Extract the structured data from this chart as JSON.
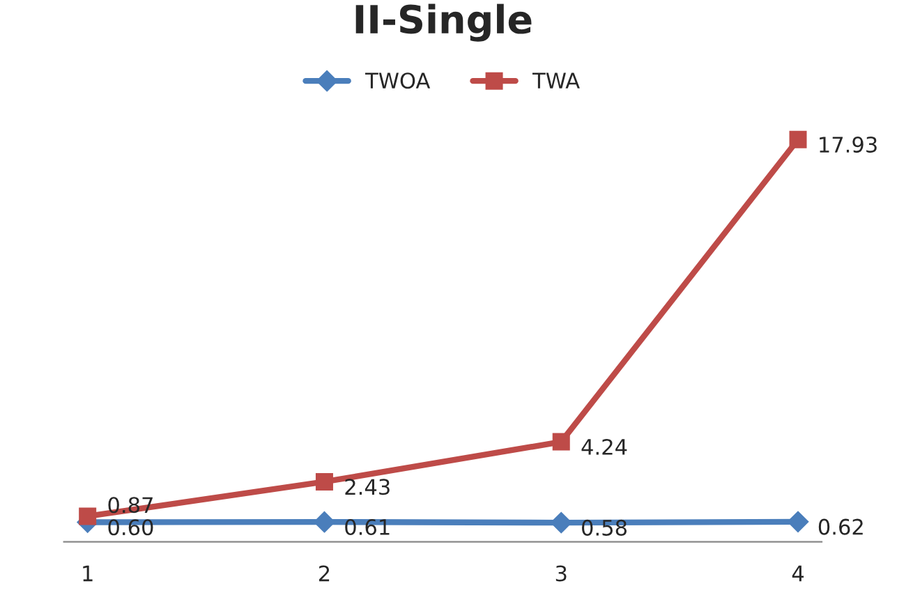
{
  "chart_data": {
    "type": "line",
    "title": "II-Single",
    "categories": [
      "1",
      "2",
      "3",
      "4"
    ],
    "series": [
      {
        "name": "TWOA",
        "color": "#4a7ebb",
        "marker": "diamond",
        "values": [
          0.6,
          0.61,
          0.58,
          0.62
        ],
        "value_labels": [
          "0.60",
          "0.61",
          "0.58",
          "0.62"
        ]
      },
      {
        "name": "TWA",
        "color": "#be4b48",
        "marker": "square",
        "values": [
          0.87,
          2.43,
          4.24,
          17.93
        ],
        "value_labels": [
          "0.87",
          "2.43",
          "4.24",
          "17.93"
        ]
      }
    ],
    "legend": "top",
    "grid": false,
    "line_style": "solid"
  }
}
